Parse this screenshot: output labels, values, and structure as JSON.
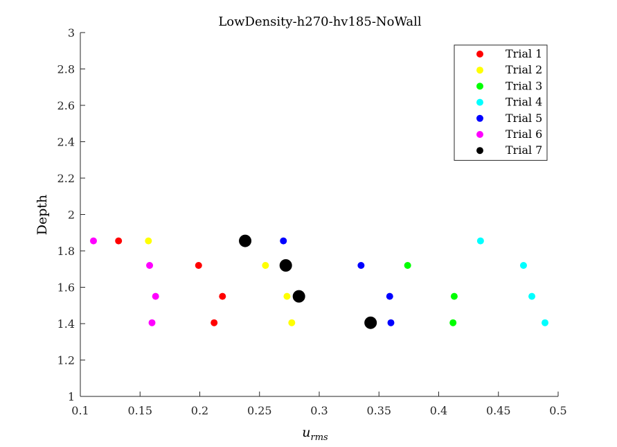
{
  "chart_data": {
    "type": "scatter",
    "title": "LowDensity-h270-hv185-NoWall",
    "xlabel_base": "u",
    "xlabel_sub": "rms",
    "ylabel": "Depth",
    "xlim": [
      0.1,
      0.5
    ],
    "ylim": [
      1,
      3
    ],
    "xticks": [
      0.1,
      0.15,
      0.2,
      0.25,
      0.3,
      0.35,
      0.4,
      0.45,
      0.5
    ],
    "xtick_labels": [
      "0.1",
      "0.15",
      "0.2",
      "0.25",
      "0.3",
      "0.35",
      "0.4",
      "0.45",
      "0.5"
    ],
    "yticks": [
      1,
      1.2,
      1.4,
      1.6,
      1.8,
      2,
      2.2,
      2.4,
      2.6,
      2.8,
      3
    ],
    "ytick_labels": [
      "1",
      "1.2",
      "1.4",
      "1.6",
      "1.8",
      "2",
      "2.2",
      "2.4",
      "2.6",
      "2.8",
      "3"
    ],
    "grid": false,
    "legend_position": "top-right",
    "series": [
      {
        "name": "Trial 1",
        "color": "#ff0000",
        "marker": "small",
        "x": [
          0.132,
          0.199,
          0.219,
          0.212
        ],
        "y": [
          1.855,
          1.72,
          1.55,
          1.405
        ]
      },
      {
        "name": "Trial 2",
        "color": "#ffff00",
        "marker": "small",
        "x": [
          0.157,
          0.255,
          0.273,
          0.277
        ],
        "y": [
          1.855,
          1.72,
          1.55,
          1.405
        ]
      },
      {
        "name": "Trial 3",
        "color": "#00ff00",
        "marker": "small",
        "x": [
          0.374,
          0.413,
          0.412
        ],
        "y": [
          1.72,
          1.55,
          1.405
        ]
      },
      {
        "name": "Trial 4",
        "color": "#00ffff",
        "marker": "small",
        "x": [
          0.435,
          0.471,
          0.478,
          0.489
        ],
        "y": [
          1.855,
          1.72,
          1.55,
          1.405
        ]
      },
      {
        "name": "Trial 5",
        "color": "#0000ff",
        "marker": "small",
        "x": [
          0.27,
          0.335,
          0.359,
          0.36
        ],
        "y": [
          1.855,
          1.72,
          1.55,
          1.405
        ]
      },
      {
        "name": "Trial 6",
        "color": "#ff00ff",
        "marker": "small",
        "x": [
          0.111,
          0.158,
          0.163,
          0.16
        ],
        "y": [
          1.855,
          1.72,
          1.55,
          1.405
        ]
      },
      {
        "name": "Trial 7",
        "color": "#000000",
        "marker": "large",
        "x": [
          0.238,
          0.272,
          0.283,
          0.343
        ],
        "y": [
          1.855,
          1.72,
          1.55,
          1.405
        ]
      }
    ]
  }
}
